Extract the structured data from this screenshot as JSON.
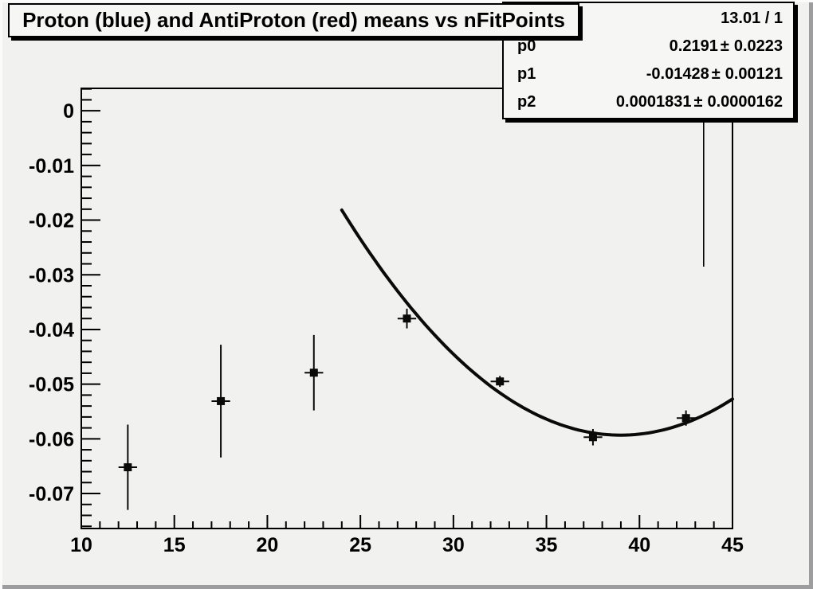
{
  "title_box": {
    "text": "Proton (blue) and AntiProton (red) means vs nFitPoints"
  },
  "stats_box": {
    "chi2_ndf": "13.01 / 1",
    "plus_minus": "±",
    "params": [
      {
        "name": "p0",
        "value": "0.2191",
        "error": "0.0223"
      },
      {
        "name": "p1",
        "value": "-0.01428",
        "error": "0.00121"
      },
      {
        "name": "p2",
        "value": "0.0001831",
        "error": "0.0000162"
      }
    ]
  },
  "chart_data": {
    "type": "scatter",
    "title": "Proton (blue) and AntiProton (red) means vs nFitPoints",
    "xlabel": "",
    "ylabel": "",
    "xlim": [
      10,
      45
    ],
    "ylim": [
      -0.0764,
      0.0041
    ],
    "x_major_ticks": [
      10,
      15,
      20,
      25,
      30,
      35,
      40,
      45
    ],
    "x_minor_step": 1,
    "y_major_ticks": [
      {
        "v": 0,
        "label": "0"
      },
      {
        "v": -0.01,
        "label": "-0.01"
      },
      {
        "v": -0.02,
        "label": "-0.02"
      },
      {
        "v": -0.03,
        "label": "-0.03"
      },
      {
        "v": -0.04,
        "label": "-0.04"
      },
      {
        "v": -0.05,
        "label": "-0.05"
      },
      {
        "v": -0.06,
        "label": "-0.06"
      },
      {
        "v": -0.07,
        "label": "-0.07"
      }
    ],
    "y_minor_step": 0.002,
    "grid": false,
    "legend": false,
    "points": [
      {
        "x": 12.5,
        "y": -0.0652,
        "ey": 0.0078,
        "ex": 0.5
      },
      {
        "x": 17.5,
        "y": -0.0531,
        "ey": 0.0103,
        "ex": 0.5
      },
      {
        "x": 22.5,
        "y": -0.0479,
        "ey": 0.0069,
        "ex": 0.5
      },
      {
        "x": 27.5,
        "y": -0.038,
        "ey": 0.0018,
        "ex": 0.5
      },
      {
        "x": 32.5,
        "y": -0.0495,
        "ey": 0.001,
        "ex": 0.5
      },
      {
        "x": 37.5,
        "y": -0.0597,
        "ey": 0.0015,
        "ex": 0.5
      },
      {
        "x": 42.5,
        "y": -0.0562,
        "ey": 0.0014,
        "ex": 0.5
      }
    ],
    "fit_curve": {
      "type": "pol2",
      "p0": 0.2191,
      "p1": -0.01428,
      "p2": 0.0001831,
      "x_start": 24,
      "x_end": 45
    },
    "extra_vline": {
      "x": 43.45,
      "y_top": -0.002,
      "y_bottom": -0.0285
    },
    "colors": {
      "marker": "#0a0a0a",
      "curve": "#0a0a0a",
      "frame": "#000000",
      "text": "#000000"
    }
  }
}
